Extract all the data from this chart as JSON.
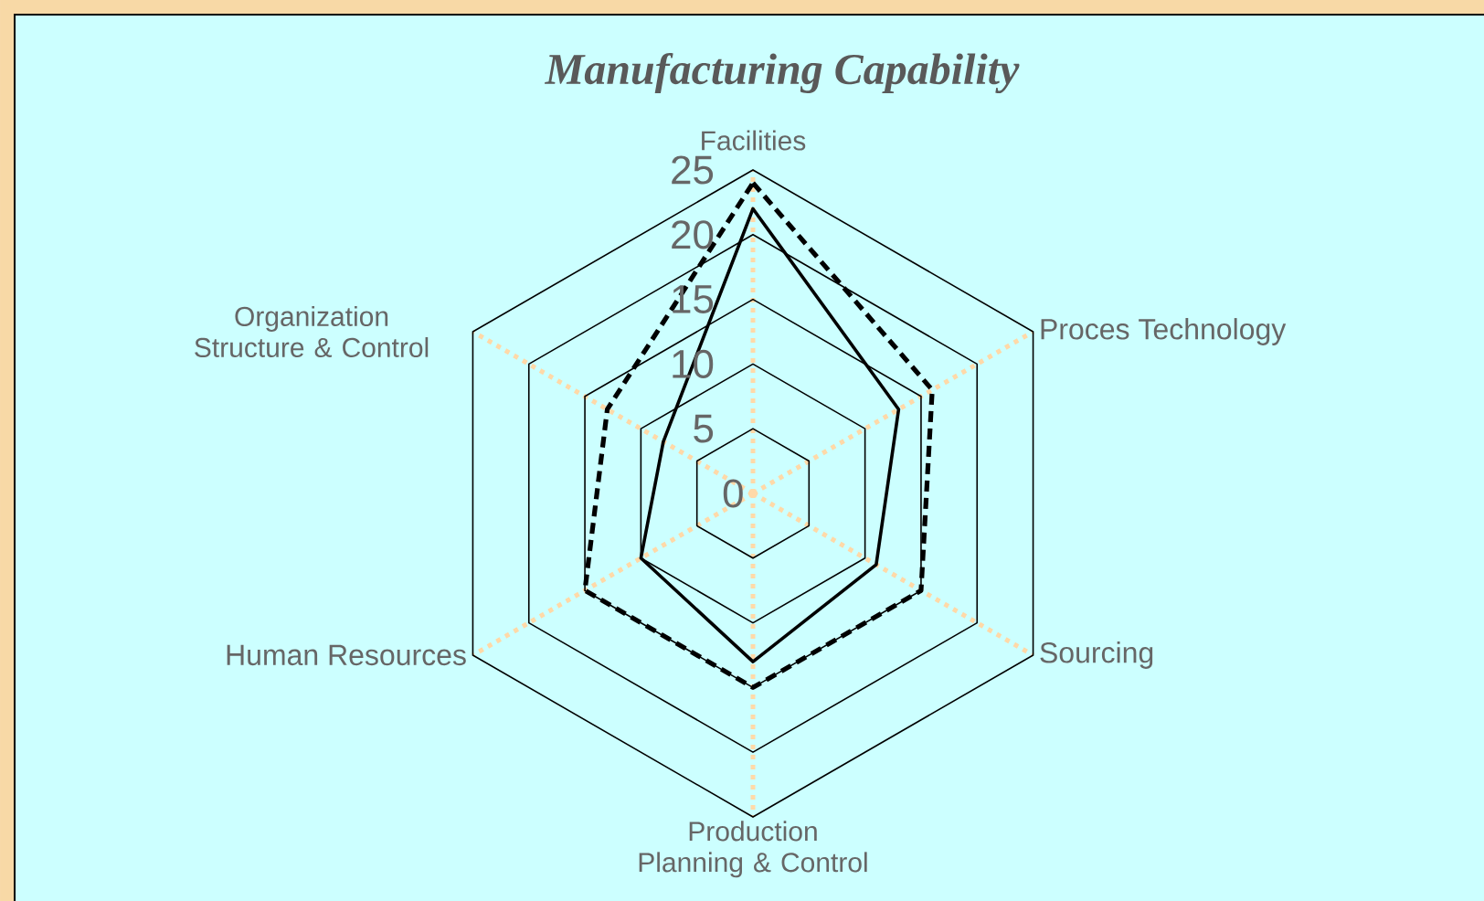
{
  "chart_data": {
    "type": "radar",
    "title": "Manufacturing Capability",
    "categories": [
      "Facilities",
      "Proces Technology",
      "Sourcing",
      "Production Planning & Control",
      "Human Resources",
      "Organization Structure & Control"
    ],
    "series": [
      {
        "color": "#000000",
        "line_style": "dashed",
        "values": [
          24,
          16,
          15,
          15,
          15,
          13
        ]
      },
      {
        "color": "#000000",
        "line_style": "solid",
        "values": [
          22,
          13,
          11,
          13,
          10,
          8
        ]
      }
    ],
    "ylim": [
      0,
      25
    ],
    "yticks": [
      0,
      5,
      10,
      15,
      20,
      25
    ],
    "grid": true
  }
}
